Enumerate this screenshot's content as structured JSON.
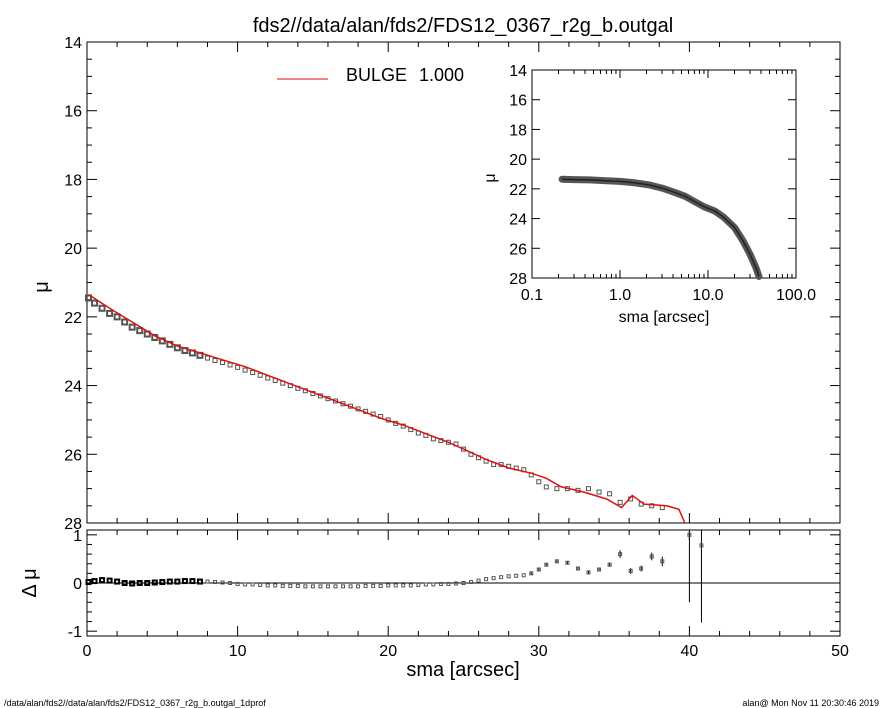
{
  "header": {
    "title": "fds2//data/alan/fds2/FDS12_0367_r2g_b.outgal"
  },
  "footer": {
    "path": "/data/alan/fds2//data/alan/fds2/FDS12_0367_r2g_b.outgal_1dprof",
    "stamp": "alan@  Mon Nov 11 20:30:46 2019"
  },
  "colors": {
    "model": "#dd1111",
    "data": "#555555",
    "axes": "#000000"
  },
  "chart_data": [
    {
      "id": "main-profile",
      "type": "scatter",
      "ylabel": "μ",
      "xlim": [
        0,
        50
      ],
      "ylim": [
        28,
        14
      ],
      "y_inverted": true,
      "grid": false,
      "yticks": [
        "14",
        "16",
        "18",
        "20",
        "22",
        "24",
        "26",
        "28"
      ],
      "legend": {
        "label": "BULGE",
        "value": "1.000",
        "placement": "top-left"
      },
      "series": [
        {
          "name": "BULGE  1.000",
          "kind": "line",
          "color": "#dd1111",
          "x": [
            0.1,
            1.5,
            3,
            4.5,
            6,
            7.5,
            9,
            10.5,
            12,
            13.5,
            15,
            16.5,
            18,
            19.5,
            21,
            22.5,
            24,
            25,
            26.5,
            28,
            29.5,
            30.5,
            31.5,
            33,
            34.5,
            35.5,
            36.2,
            37,
            38.5,
            39.3,
            39.7
          ],
          "y": [
            21.35,
            21.75,
            22.15,
            22.55,
            22.85,
            23.05,
            23.25,
            23.45,
            23.7,
            23.95,
            24.2,
            24.45,
            24.7,
            24.95,
            25.15,
            25.4,
            25.65,
            25.85,
            26.15,
            26.4,
            26.55,
            26.7,
            26.95,
            27.1,
            27.3,
            27.55,
            27.2,
            27.45,
            27.5,
            27.6,
            28.0
          ]
        },
        {
          "name": "data",
          "kind": "points",
          "color": "#555555",
          "x": [
            0.1,
            0.5,
            1,
            1.5,
            2,
            2.5,
            3,
            3.5,
            4,
            4.5,
            5,
            5.5,
            6,
            6.5,
            7,
            7.5,
            8,
            8.5,
            9,
            9.5,
            10,
            10.5,
            11,
            11.5,
            12,
            12.5,
            13,
            13.5,
            14,
            14.5,
            15,
            15.5,
            16,
            16.5,
            17,
            17.5,
            18,
            18.5,
            19,
            19.5,
            20,
            20.5,
            21,
            21.5,
            22,
            22.5,
            23,
            23.5,
            24,
            24.5,
            25,
            25.5,
            26,
            26.5,
            27,
            27.5,
            28,
            28.5,
            29,
            29.5,
            30,
            30.5,
            31.2,
            31.9,
            32.6,
            33.3,
            34,
            34.7,
            35.4,
            36.1,
            36.8,
            37.5,
            38.2
          ],
          "y": [
            21.45,
            21.6,
            21.75,
            21.9,
            22.0,
            22.15,
            22.3,
            22.4,
            22.5,
            22.6,
            22.7,
            22.8,
            22.9,
            22.98,
            23.05,
            23.12,
            23.2,
            23.27,
            23.33,
            23.4,
            23.47,
            23.55,
            23.62,
            23.7,
            23.78,
            23.85,
            23.93,
            24.0,
            24.08,
            24.15,
            24.23,
            24.3,
            24.38,
            24.45,
            24.53,
            24.6,
            24.68,
            24.75,
            24.83,
            24.9,
            25.0,
            25.1,
            25.18,
            25.28,
            25.38,
            25.45,
            25.55,
            25.6,
            25.65,
            25.7,
            25.85,
            26.0,
            26.1,
            26.2,
            26.3,
            26.3,
            26.35,
            26.4,
            26.45,
            26.6,
            26.8,
            26.95,
            27.0,
            27.0,
            27.05,
            27.0,
            27.1,
            27.15,
            27.4,
            27.3,
            27.45,
            27.5,
            27.55
          ]
        }
      ]
    },
    {
      "id": "inset-log-profile",
      "type": "scatter",
      "xlabel": "sma [arcsec]",
      "ylabel": "μ",
      "x_scale": "log",
      "xlim": [
        0.1,
        100
      ],
      "ylim": [
        28,
        14
      ],
      "y_inverted": true,
      "xticks": [
        "0.1",
        "1.0",
        "10.0",
        "100.0"
      ],
      "yticks": [
        "14",
        "16",
        "18",
        "20",
        "22",
        "24",
        "26",
        "28"
      ],
      "series": [
        {
          "name": "data",
          "kind": "thick-line",
          "color": "#555555",
          "x": [
            0.22,
            0.3,
            0.45,
            0.7,
            1.0,
            1.5,
            2.2,
            3.0,
            4.0,
            5.5,
            7.0,
            9.0,
            12,
            15,
            20,
            25,
            30,
            35,
            38
          ],
          "y": [
            21.35,
            21.38,
            21.4,
            21.45,
            21.5,
            21.6,
            21.75,
            21.95,
            22.2,
            22.5,
            22.85,
            23.2,
            23.5,
            23.9,
            24.6,
            25.5,
            26.4,
            27.3,
            27.9
          ]
        }
      ]
    },
    {
      "id": "residuals",
      "type": "scatter",
      "xlabel": "sma [arcsec]",
      "ylabel": "Δ μ",
      "xlim": [
        0,
        50
      ],
      "ylim": [
        -1.1,
        1.1
      ],
      "xticks": [
        "0",
        "10",
        "20",
        "30",
        "40",
        "50"
      ],
      "yticks": [
        "-1",
        "0",
        "1"
      ],
      "reference_line": 0,
      "series": [
        {
          "name": "residual",
          "kind": "points-with-errors",
          "color": "#555555",
          "x": [
            0.1,
            0.5,
            1,
            1.5,
            2,
            2.5,
            3,
            3.5,
            4,
            4.5,
            5,
            5.5,
            6,
            6.5,
            7,
            7.5,
            8,
            8.5,
            9,
            9.5,
            10,
            10.5,
            11,
            11.5,
            12,
            12.5,
            13,
            13.5,
            14,
            14.5,
            15,
            15.5,
            16,
            16.5,
            17,
            17.5,
            18,
            18.5,
            19,
            19.5,
            20,
            20.5,
            21,
            21.5,
            22,
            22.5,
            23,
            23.5,
            24,
            24.5,
            25,
            25.5,
            26,
            26.5,
            27,
            27.5,
            28,
            28.5,
            29,
            29.5,
            30,
            30.5,
            31.2,
            31.9,
            32.6,
            33.3,
            34,
            34.7,
            35.4,
            36.1,
            36.8,
            37.5,
            38.2,
            40.0,
            40.8
          ],
          "y": [
            0.02,
            0.04,
            0.06,
            0.05,
            0.03,
            0.0,
            -0.01,
            0.0,
            0.0,
            0.01,
            0.02,
            0.03,
            0.03,
            0.04,
            0.04,
            0.03,
            0.03,
            0.02,
            0.01,
            0.0,
            -0.02,
            -0.03,
            -0.03,
            -0.04,
            -0.05,
            -0.05,
            -0.06,
            -0.06,
            -0.06,
            -0.07,
            -0.07,
            -0.07,
            -0.07,
            -0.07,
            -0.07,
            -0.07,
            -0.07,
            -0.06,
            -0.06,
            -0.06,
            -0.05,
            -0.05,
            -0.05,
            -0.05,
            -0.04,
            -0.03,
            -0.03,
            -0.02,
            -0.02,
            -0.01,
            0.0,
            0.02,
            0.05,
            0.08,
            0.1,
            0.12,
            0.14,
            0.15,
            0.16,
            0.2,
            0.28,
            0.38,
            0.45,
            0.42,
            0.3,
            0.22,
            0.28,
            0.38,
            0.6,
            0.25,
            0.3,
            0.55,
            0.45,
            1.0,
            0.78
          ],
          "err": [
            0.01,
            0.01,
            0.01,
            0.01,
            0.01,
            0.01,
            0.01,
            0.01,
            0.01,
            0.01,
            0.01,
            0.01,
            0.01,
            0.01,
            0.01,
            0.01,
            0.01,
            0.01,
            0.01,
            0.01,
            0.01,
            0.01,
            0.01,
            0.01,
            0.01,
            0.01,
            0.01,
            0.01,
            0.01,
            0.01,
            0.01,
            0.01,
            0.01,
            0.01,
            0.01,
            0.01,
            0.01,
            0.01,
            0.01,
            0.01,
            0.01,
            0.01,
            0.01,
            0.01,
            0.01,
            0.01,
            0.01,
            0.01,
            0.02,
            0.02,
            0.02,
            0.02,
            0.02,
            0.02,
            0.02,
            0.02,
            0.02,
            0.02,
            0.02,
            0.03,
            0.03,
            0.03,
            0.03,
            0.03,
            0.04,
            0.04,
            0.04,
            0.04,
            0.08,
            0.06,
            0.06,
            0.08,
            0.1,
            1.4,
            1.6
          ]
        }
      ]
    }
  ]
}
